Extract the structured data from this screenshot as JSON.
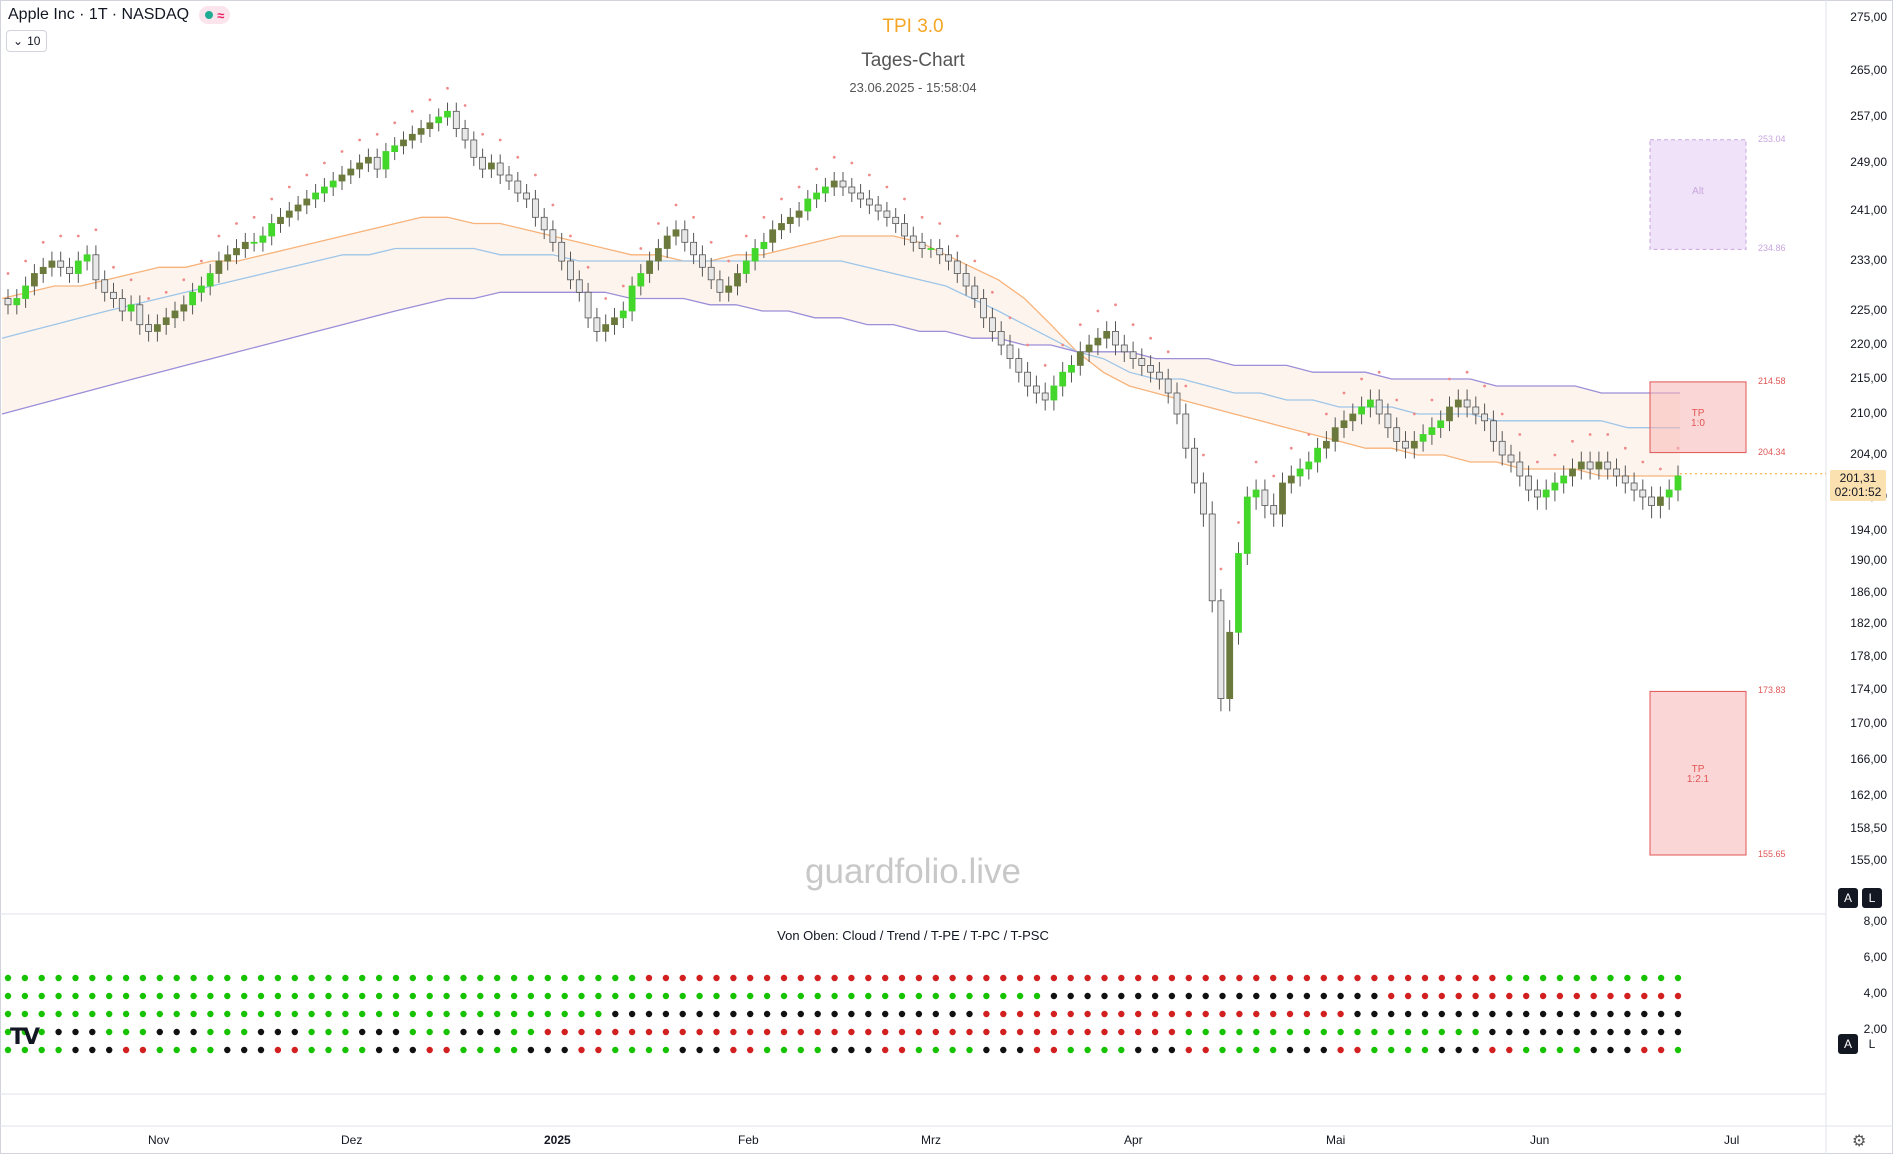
{
  "header": {
    "symbol_title": "Apple Inc · 1T · NASDAQ",
    "indicator_collapse_count": "10",
    "status_icon": "wave-icon"
  },
  "overlay": {
    "title": "TPI 3.0",
    "subtitle": "Tages-Chart",
    "timestamp": "23.06.2025 - 15:58:04",
    "watermark": "guardfolio.live"
  },
  "lower_pane": {
    "label": "Von Oben: Cloud / Trend / T-PE / T-PC / T-PSC"
  },
  "buttons": {
    "auto": "A",
    "log": "L"
  },
  "current_price": {
    "value": "201,31",
    "countdown": "02:01:52"
  },
  "colors": {
    "bull": "#43d62b",
    "bull_dark": "#6b7a3c",
    "bear": "#9e9e9e",
    "ema_orange": "#f7b27a",
    "ema_blue": "#9ec5e8",
    "ema_purple": "#9c8ed8",
    "tp_box": "#f8b4b4",
    "alt_box": "#e9d5f5",
    "dot_green": "#17c200",
    "dot_red": "#d21f1f",
    "dot_black": "#111111"
  },
  "chart_data": {
    "type": "candlestick",
    "y_axis": {
      "min": 155,
      "max": 275,
      "ticks": [
        "275,00",
        "265,00",
        "257,00",
        "249,00",
        "241,00",
        "233,00",
        "225,00",
        "220,00",
        "215,00",
        "210,00",
        "204,00",
        "198,00",
        "194,00",
        "190,00",
        "186,00",
        "182,00",
        "178,00",
        "174,00",
        "170,00",
        "166,00",
        "162,00",
        "158,50",
        "155,00"
      ]
    },
    "x_axis": {
      "months": [
        "Nov",
        "Dez",
        "2025",
        "Feb",
        "Mrz",
        "Apr",
        "Mai",
        "Jun",
        "Jul"
      ]
    },
    "series": [
      {
        "name": "Apple Inc",
        "close": [
          226,
          227,
          229,
          231,
          232,
          233,
          232,
          231,
          233,
          234,
          230,
          228,
          227,
          225,
          226,
          223,
          222,
          223,
          224,
          225,
          226,
          228,
          229,
          231,
          233,
          234,
          235,
          236,
          236,
          237,
          239,
          240,
          241,
          242,
          243,
          244,
          245,
          246,
          247,
          248,
          249,
          250,
          248,
          251,
          252,
          253,
          254,
          255,
          256,
          257,
          258,
          255,
          253,
          250,
          248,
          249,
          247,
          246,
          244,
          243,
          240,
          238,
          236,
          233,
          230,
          228,
          224,
          222,
          223,
          224,
          225,
          229,
          231,
          233,
          235,
          237,
          238,
          236,
          234,
          232,
          230,
          228,
          229,
          231,
          233,
          235,
          236,
          238,
          239,
          240,
          241,
          243,
          244,
          245,
          246,
          245,
          244,
          243,
          242,
          241,
          240,
          239,
          237,
          236,
          235,
          235,
          234,
          233,
          231,
          229,
          227,
          224,
          222,
          220,
          218,
          216,
          214,
          213,
          212,
          214,
          216,
          217,
          219,
          220,
          221,
          222,
          220,
          219,
          218,
          217,
          216,
          215,
          213,
          210,
          205,
          200,
          196,
          185,
          173,
          181,
          191,
          198,
          199,
          197,
          196,
          200,
          201,
          202,
          203,
          205,
          206,
          208,
          209,
          210,
          211,
          212,
          210,
          208,
          206,
          205,
          206,
          207,
          208,
          209,
          211,
          212,
          211,
          210,
          209,
          206,
          204,
          203,
          201,
          199,
          198,
          199,
          200,
          201,
          202,
          203,
          202,
          203,
          202,
          201,
          200,
          199,
          198,
          197,
          198,
          199,
          201
        ]
      },
      {
        "name": "EMA orange",
        "values": [
          227,
          228,
          229,
          229,
          230,
          231,
          232,
          232,
          233,
          233,
          234,
          235,
          236,
          237,
          238,
          239,
          240,
          240,
          239,
          239,
          238,
          237,
          236,
          235,
          234,
          234,
          233,
          233,
          234,
          234,
          235,
          236,
          237,
          237,
          237,
          236,
          234,
          232,
          230,
          227,
          223,
          219,
          216,
          214,
          213,
          212,
          211,
          210,
          209,
          208,
          207,
          206,
          205,
          205,
          204,
          204,
          203,
          203,
          202,
          202,
          202,
          201,
          201,
          201,
          201
        ]
      },
      {
        "name": "EMA blue",
        "values": [
          221,
          222,
          223,
          224,
          225,
          226,
          227,
          228,
          229,
          230,
          231,
          232,
          233,
          234,
          234,
          235,
          235,
          235,
          235,
          234,
          234,
          234,
          233,
          233,
          233,
          233,
          233,
          233,
          233,
          233,
          233,
          233,
          233,
          232,
          231,
          230,
          229,
          227,
          225,
          223,
          221,
          219,
          218,
          216,
          215,
          215,
          214,
          213,
          213,
          212,
          212,
          211,
          211,
          211,
          210,
          210,
          210,
          209,
          209,
          209,
          209,
          209,
          208,
          208,
          208
        ]
      },
      {
        "name": "EMA purple",
        "values": [
          210,
          211,
          212,
          213,
          214,
          215,
          216,
          217,
          218,
          219,
          220,
          221,
          222,
          223,
          224,
          225,
          226,
          227,
          227,
          228,
          228,
          228,
          228,
          228,
          227,
          227,
          227,
          226,
          226,
          225,
          225,
          224,
          224,
          223,
          223,
          222,
          222,
          221,
          221,
          220,
          220,
          219,
          219,
          219,
          218,
          218,
          218,
          217,
          217,
          217,
          216,
          216,
          216,
          215,
          215,
          215,
          215,
          214,
          214,
          214,
          214,
          213,
          213,
          213,
          213
        ]
      }
    ],
    "levels": [
      {
        "label": "253.04",
        "value": 253.04
      },
      {
        "label": "234.86",
        "value": 234.86
      },
      {
        "label": "214.58",
        "value": 214.58
      },
      {
        "label": "204.34",
        "value": 204.34
      },
      {
        "label": "173.83",
        "value": 173.83
      },
      {
        "label": "155.65",
        "value": 155.65
      }
    ],
    "boxes": [
      {
        "label": "Alt",
        "top": 253.04,
        "bottom": 234.86
      },
      {
        "label": "TP\n1:0",
        "top": 214.58,
        "bottom": 204.34
      },
      {
        "label": "TP\n1:2.1",
        "top": 173.83,
        "bottom": 155.65
      }
    ],
    "oscillator_y_ticks": [
      "8,00",
      "6,00",
      "4,00",
      "2,00"
    ],
    "dot_rows": 5
  }
}
